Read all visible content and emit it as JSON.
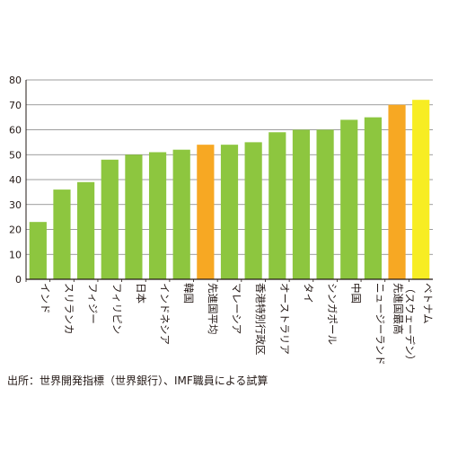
{
  "chart_data": {
    "type": "bar",
    "title": "",
    "xlabel": "",
    "ylabel": "",
    "ylim": [
      0,
      80
    ],
    "yticks": [
      0,
      10,
      20,
      30,
      40,
      50,
      60,
      70,
      80
    ],
    "grid": true,
    "legend": "none",
    "categories": [
      "インド",
      "スリランカ",
      "フィジー",
      "フィリピン",
      "日本",
      "インドネシア",
      "韓国",
      "先進国平均",
      "マレーシア",
      "香港特別行政区",
      "オーストラリア",
      "タイ",
      "シンガポール",
      "中国",
      "ニュージーランド",
      "先進国最高（スウェーデン）",
      "ベトナム"
    ],
    "category_lines": [
      [
        "インド"
      ],
      [
        "スリランカ"
      ],
      [
        "フィジー"
      ],
      [
        "フィリピン"
      ],
      [
        "日本"
      ],
      [
        "インドネシア"
      ],
      [
        "韓国"
      ],
      [
        "先進国平均"
      ],
      [
        "マレーシア"
      ],
      [
        "香港特別行政区"
      ],
      [
        "オーストラリア"
      ],
      [
        "タイ"
      ],
      [
        "シンガポール"
      ],
      [
        "中国"
      ],
      [
        "ニュージーランド"
      ],
      [
        "先進国最高",
        "（スウェーデン）"
      ],
      [
        "ベトナム"
      ]
    ],
    "values": [
      23,
      36,
      39,
      48,
      50,
      51,
      52,
      54,
      54,
      55,
      59,
      60,
      60,
      64,
      65,
      70,
      72
    ],
    "bar_colors": [
      "#8dc63f",
      "#8dc63f",
      "#8dc63f",
      "#8dc63f",
      "#8dc63f",
      "#8dc63f",
      "#8dc63f",
      "#f7a823",
      "#8dc63f",
      "#8dc63f",
      "#8dc63f",
      "#8dc63f",
      "#8dc63f",
      "#8dc63f",
      "#8dc63f",
      "#f7a823",
      "#f7ed23"
    ],
    "colors": {
      "default_bar": "#8dc63f",
      "average_bar": "#f7a823",
      "highlight_bar": "#f7ed23",
      "grid": "#7d7d7d",
      "axis": "#231815",
      "text": "#231815"
    }
  },
  "source_note": "出所：世界開発指標（世界銀行）、IMF職員による試算"
}
